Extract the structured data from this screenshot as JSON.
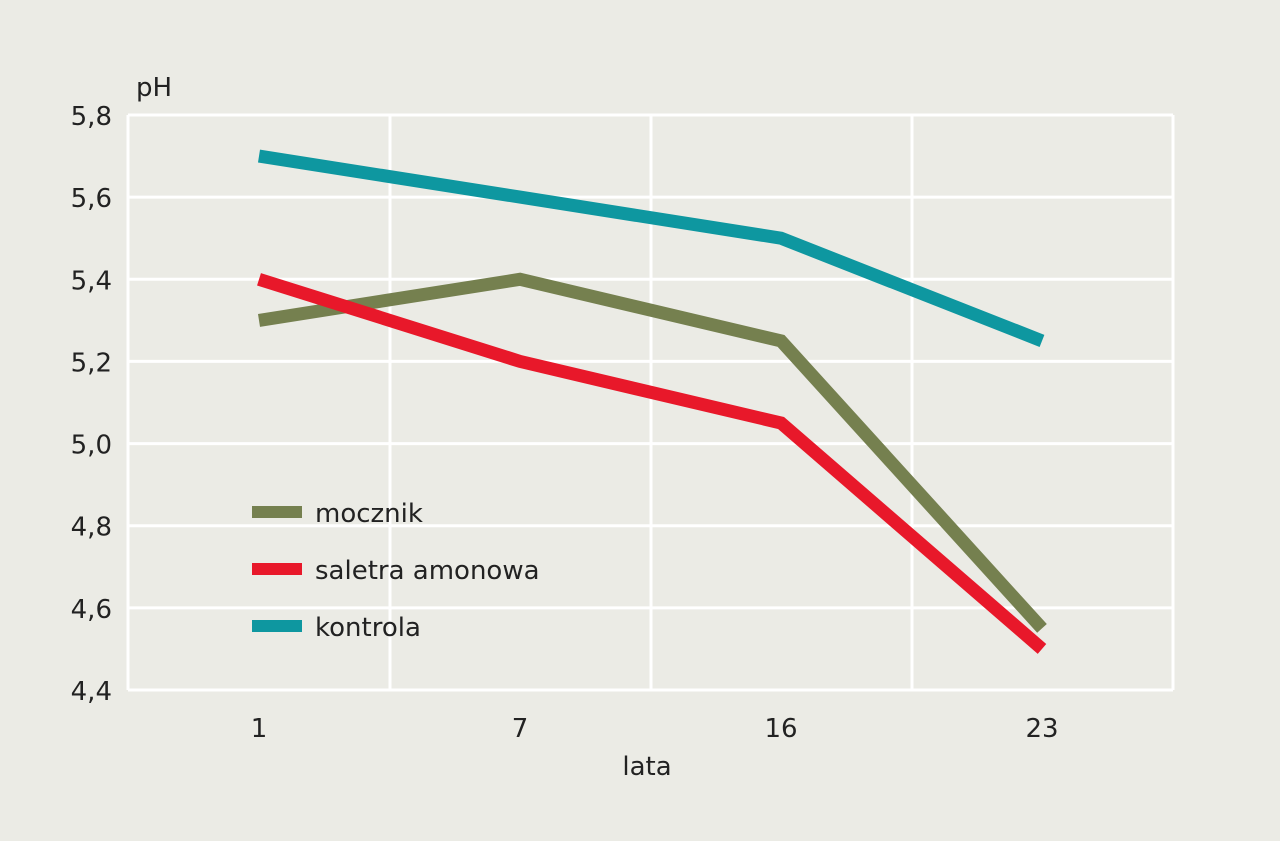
{
  "chart_data": {
    "type": "line",
    "title": "",
    "xlabel": "lata",
    "ylabel": "pH",
    "categories": [
      "1",
      "7",
      "16",
      "23"
    ],
    "ylim": [
      4.4,
      5.8
    ],
    "yticks": [
      "4,4",
      "4,6",
      "4,8",
      "5,0",
      "5,2",
      "5,4",
      "5,6",
      "5,8"
    ],
    "grid": true,
    "legend_position": "inside-lower-left",
    "series": [
      {
        "name": "mocznik",
        "color": "#75804f",
        "values": [
          5.3,
          5.4,
          5.25,
          4.55
        ]
      },
      {
        "name": "saletra amonowa",
        "color": "#e8182a",
        "values": [
          5.4,
          5.2,
          5.05,
          4.5
        ]
      },
      {
        "name": "kontrola",
        "color": "#0e97a0",
        "values": [
          5.7,
          5.6,
          5.5,
          5.25
        ]
      }
    ]
  },
  "colors": {
    "background": "#ebebe5",
    "grid": "#ffffff",
    "text": "#222222"
  }
}
